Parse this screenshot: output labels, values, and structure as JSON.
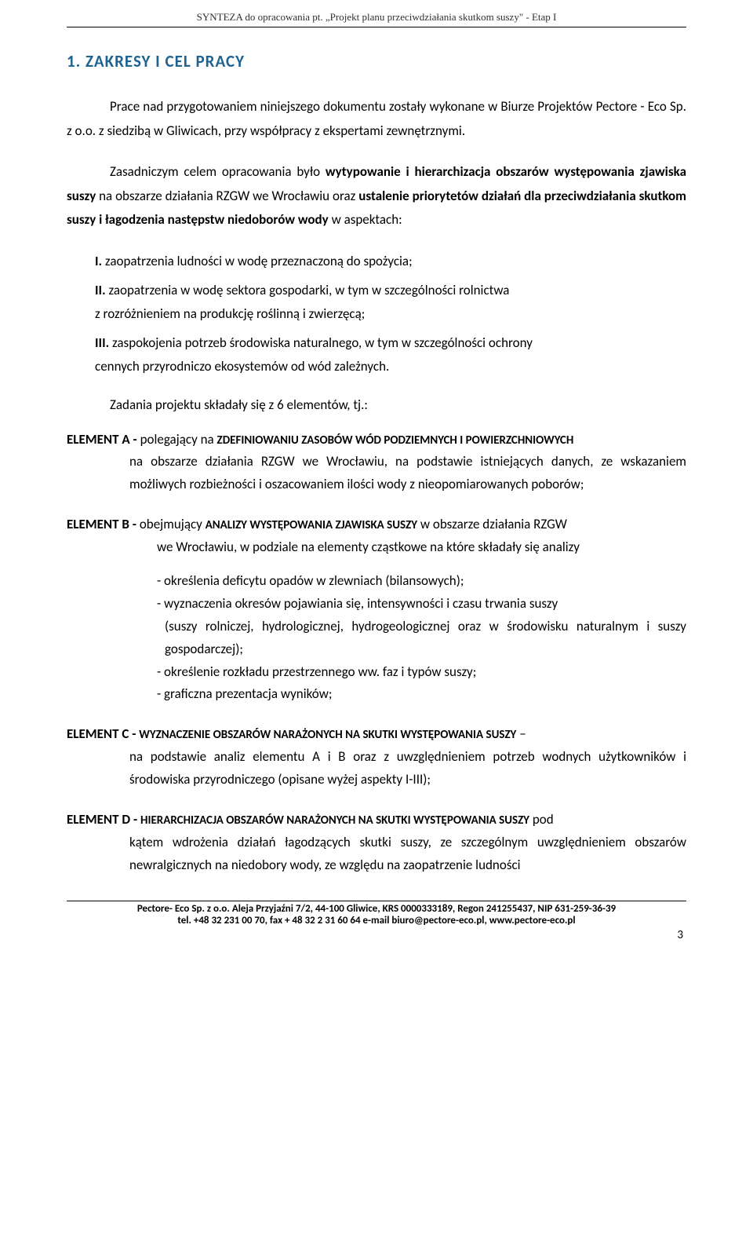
{
  "header": {
    "text": "SYNTEZA do opracowania pt. „Projekt planu przeciwdziałania skutkom suszy\" - Etap I"
  },
  "section_title": "1. ZAKRESY I CEL PRACY",
  "intro": "Prace nad przygotowaniem niniejszego dokumentu zostały wykonane w Biurze Projektów Pectore - Eco Sp. z o.o. z siedzibą w Gliwicach, przy współpracy z ekspertami zewnętrznymi.",
  "para2_pre": "Zasadniczym celem opracowania było ",
  "para2_bold1": "wytypowanie i hierarchizacja obszarów występowania zjawiska suszy",
  "para2_mid": " na obszarze działania RZGW we Wrocławiu oraz ",
  "para2_bold2": "ustalenie priorytetów działań dla przeciwdziałania skutkom suszy i łagodzenia następstw niedoborów wody",
  "para2_end": " w aspektach:",
  "list": {
    "i": "zaopatrzenia ludności w wodę przeznaczoną do spożycia;",
    "ii_a": "zaopatrzenia w wodę sektora gospodarki, w tym w szczególności rolnictwa",
    "ii_b": "z rozróżnieniem na produkcję roślinną i zwierzęcą;",
    "iii_a": "zaspokojenia potrzeb środowiska naturalnego, w tym w szczególności ochrony",
    "iii_b": "cennych przyrodniczo ekosystemów od wód zależnych."
  },
  "task_line": "Zadania projektu składały się z 6 elementów, tj.:",
  "elA": {
    "label": "ELEMENT A - ",
    "lead": "polegający na ",
    "caps": "ZDEFINIOWANIU ZASOBÓW WÓD PODZIEMNYCH I POWIERZCHNIOWYCH",
    "rest": " na obszarze działania RZGW we Wrocławiu, na podstawie istniejących danych, ze wskazaniem możliwych rozbieżności i oszacowaniem ilości wody z nieopomiarowanych poborów;"
  },
  "elB": {
    "label": "ELEMENT B - ",
    "lead": " obejmujący ",
    "caps": "ANALIZY WYSTĘPOWANIA ZJAWISKA SUSZY",
    "rest": " w obszarze działania RZGW",
    "line2": "we Wrocławiu, w podziale na elementy cząstkowe na które składały się analizy",
    "d1": "- określenia deficytu opadów w zlewniach (bilansowych);",
    "d2": "- wyznaczenia okresów pojawiania się, intensywności i czasu trwania suszy",
    "d2b": "(suszy rolniczej, hydrologicznej, hydrogeologicznej oraz w  środowisku naturalnym i suszy gospodarczej);",
    "d3": "- określenie rozkładu przestrzennego ww. faz i typów suszy;",
    "d4": "- graficzna prezentacja wyników;"
  },
  "elC": {
    "label": "ELEMENT C - ",
    "caps": "WYZNACZENIE OBSZARÓW NARAŻONYCH NA SKUTKI WYSTĘPOWANIA SUSZY",
    "dash": " – ",
    "rest": "na podstawie analiz elementu A i B oraz z uwzględnieniem potrzeb wodnych użytkowników i środowiska przyrodniczego (opisane wyżej aspekty I-III);"
  },
  "elD": {
    "label": "ELEMENT D - ",
    "caps": "HIERARCHIZACJA OBSZARÓW NARAŻONYCH NA SKUTKI WYSTĘPOWANIA SUSZY",
    "post": " pod ",
    "rest": "kątem wdrożenia działań łagodzących skutki suszy, ze szczególnym uwzględnieniem obszarów newralgicznych na niedobory wody, ze względu na zaopatrzenie ludności"
  },
  "footer": {
    "l1": "Pectore- Eco Sp. z o.o. Aleja Przyjaźni 7/2, 44-100 Gliwice, KRS 0000333189, Regon 241255437, NIP 631-259-36-39",
    "l2": "tel. +48  32 231 00 70, fax + 48  32 2 31 60 64 e-mail biuro@pectore-eco.pl, www.pectore-eco.pl"
  },
  "page_number": "3",
  "colors": {
    "heading": "#1f6391",
    "text": "#000000",
    "bg": "#ffffff",
    "rule": "#000000"
  }
}
